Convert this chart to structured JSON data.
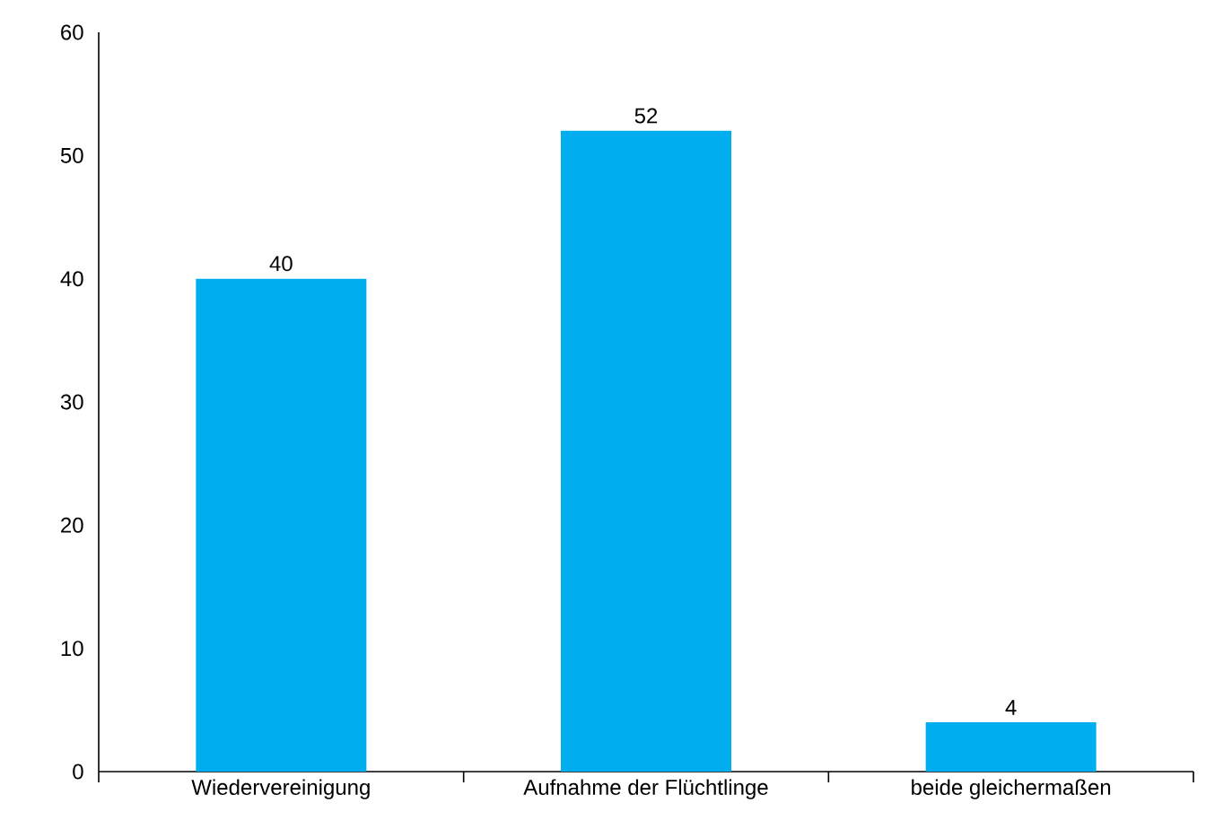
{
  "chart_data": {
    "type": "bar",
    "categories": [
      "Wiedervereinigung",
      "Aufnahme der Flüchtlinge",
      "beide gleichermaßen"
    ],
    "values": [
      40,
      52,
      4
    ],
    "color": "#00aeef",
    "ylim": [
      0,
      60
    ],
    "yticks": [
      0,
      10,
      20,
      30,
      40,
      50,
      60
    ],
    "data_labels": true,
    "grid": false
  }
}
